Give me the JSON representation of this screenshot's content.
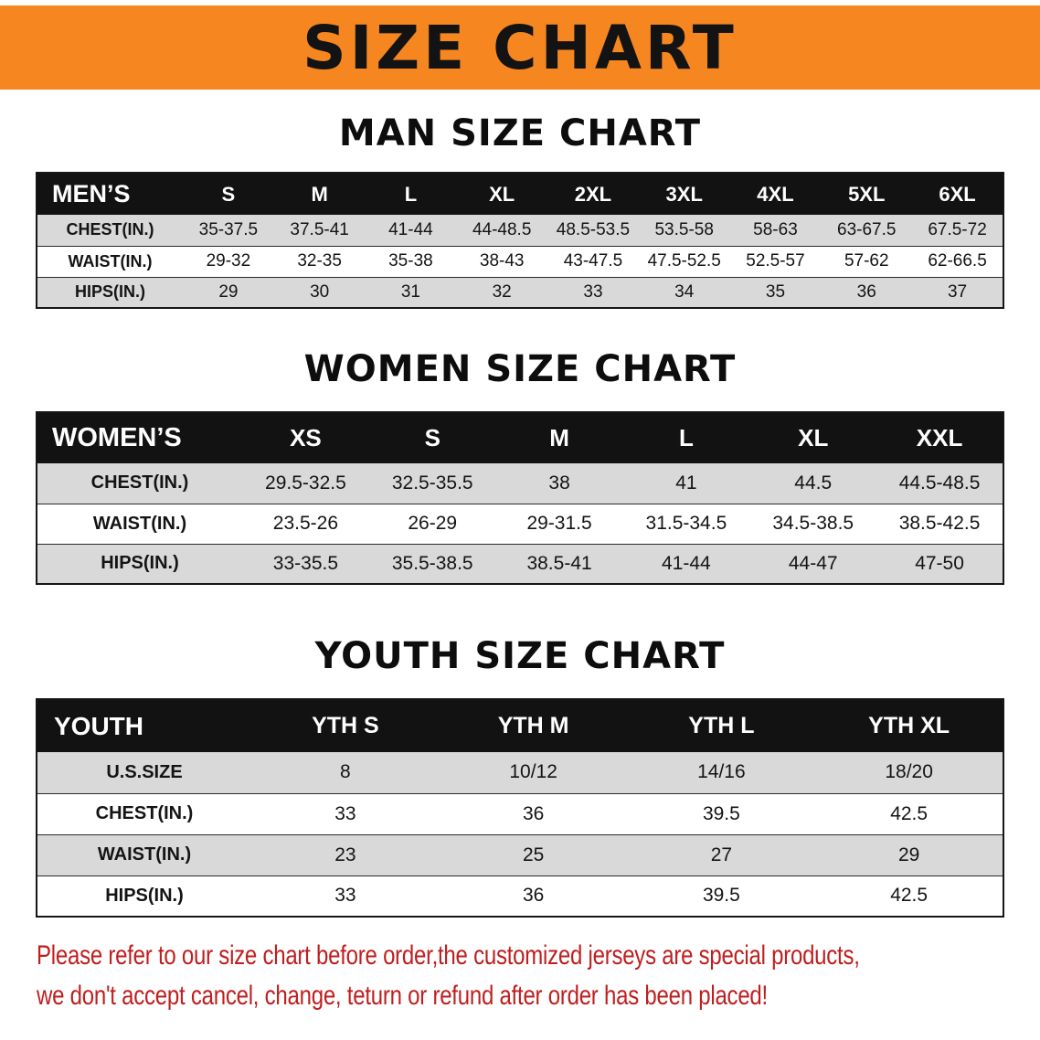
{
  "banner": {
    "title": "SIZE CHART"
  },
  "sections": {
    "men": {
      "title": "MAN SIZE CHART"
    },
    "women": {
      "title": "WOMEN SIZE CHART"
    },
    "youth": {
      "title": "YOUTH SIZE CHART"
    }
  },
  "tables": {
    "men": {
      "header": [
        "MEN’S",
        "S",
        "M",
        "L",
        "XL",
        "2XL",
        "3XL",
        "4XL",
        "5XL",
        "6XL"
      ],
      "rows": [
        [
          "CHEST(IN.)",
          "35-37.5",
          "37.5-41",
          "41-44",
          "44-48.5",
          "48.5-53.5",
          "53.5-58",
          "58-63",
          "63-67.5",
          "67.5-72"
        ],
        [
          "WAIST(IN.)",
          "29-32",
          "32-35",
          "35-38",
          "38-43",
          "43-47.5",
          "47.5-52.5",
          "52.5-57",
          "57-62",
          "62-66.5"
        ],
        [
          "HIPS(IN.)",
          "29",
          "30",
          "31",
          "32",
          "33",
          "34",
          "35",
          "36",
          "37"
        ]
      ]
    },
    "women": {
      "header": [
        "WOMEN’S",
        "XS",
        "S",
        "M",
        "L",
        "XL",
        "XXL"
      ],
      "rows": [
        [
          "CHEST(IN.)",
          "29.5-32.5",
          "32.5-35.5",
          "38",
          "41",
          "44.5",
          "44.5-48.5"
        ],
        [
          "WAIST(IN.)",
          "23.5-26",
          "26-29",
          "29-31.5",
          "31.5-34.5",
          "34.5-38.5",
          "38.5-42.5"
        ],
        [
          "HIPS(IN.)",
          "33-35.5",
          "35.5-38.5",
          "38.5-41",
          "41-44",
          "44-47",
          "47-50"
        ]
      ]
    },
    "youth": {
      "header": [
        "YOUTH",
        "YTH S",
        "YTH M",
        "YTH L",
        "YTH XL"
      ],
      "rows": [
        [
          "U.S.SIZE",
          "8",
          "10/12",
          "14/16",
          "18/20"
        ],
        [
          "CHEST(IN.)",
          "33",
          "36",
          "39.5",
          "42.5"
        ],
        [
          "WAIST(IN.)",
          "23",
          "25",
          "27",
          "29"
        ],
        [
          "HIPS(IN.)",
          "33",
          "36",
          "39.5",
          "42.5"
        ]
      ]
    }
  },
  "notice": {
    "lines": [
      "Please refer to our size chart before order,the customized jerseys are special products,",
      "we don't accept cancel, change, teturn or refund after order has been placed!"
    ]
  },
  "colors": {
    "banner_bg": "#f6861f",
    "table_header_bg": "#121212",
    "row_shade": "#d9d9d9",
    "notice_text": "#bf1e1e"
  }
}
